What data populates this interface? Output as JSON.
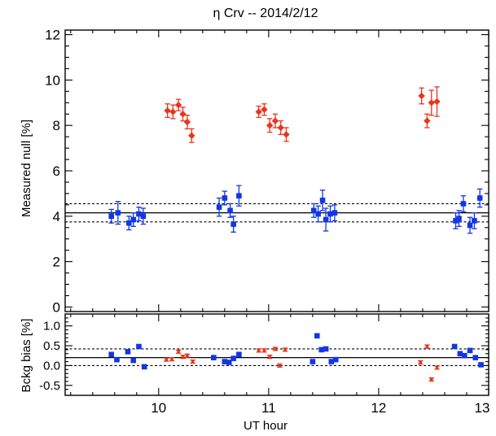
{
  "colors": {
    "red": "#e8351c",
    "blue": "#1236e6",
    "axis": "#000000"
  },
  "chart_data": [
    {
      "type": "scatter",
      "title": "η Crv -- 2014/2/12",
      "xlabel": "",
      "ylabel": "Measured null [%]",
      "xlim": [
        9.15,
        13.0
      ],
      "ylim": [
        -0.2,
        12.2
      ],
      "yticks": [
        0,
        2,
        4,
        6,
        8,
        10,
        12
      ],
      "reference_lines": {
        "solid": 4.15,
        "dashed": [
          3.75,
          4.55
        ]
      },
      "series": [
        {
          "color": "red",
          "marker": "diamond",
          "points": [
            {
              "x": 10.08,
              "y": 8.65,
              "err": 0.3
            },
            {
              "x": 10.13,
              "y": 8.6,
              "err": 0.3
            },
            {
              "x": 10.18,
              "y": 8.9,
              "err": 0.25
            },
            {
              "x": 10.22,
              "y": 8.5,
              "err": 0.3
            },
            {
              "x": 10.26,
              "y": 8.15,
              "err": 0.3
            },
            {
              "x": 10.3,
              "y": 7.55,
              "err": 0.3
            },
            {
              "x": 10.91,
              "y": 8.6,
              "err": 0.25
            },
            {
              "x": 10.96,
              "y": 8.7,
              "err": 0.25
            },
            {
              "x": 11.01,
              "y": 8.0,
              "err": 0.3
            },
            {
              "x": 11.06,
              "y": 8.2,
              "err": 0.3
            },
            {
              "x": 11.11,
              "y": 7.9,
              "err": 0.3
            },
            {
              "x": 11.16,
              "y": 7.6,
              "err": 0.3
            },
            {
              "x": 12.39,
              "y": 9.3,
              "err": 0.35
            },
            {
              "x": 12.44,
              "y": 8.2,
              "err": 0.3
            },
            {
              "x": 12.48,
              "y": 9.0,
              "err": 0.55
            },
            {
              "x": 12.53,
              "y": 9.05,
              "err": 0.65
            }
          ]
        },
        {
          "color": "blue",
          "marker": "square",
          "points": [
            {
              "x": 9.57,
              "y": 4.0,
              "err": 0.3
            },
            {
              "x": 9.63,
              "y": 4.15,
              "err": 0.5
            },
            {
              "x": 9.73,
              "y": 3.7,
              "err": 0.3
            },
            {
              "x": 9.77,
              "y": 3.85,
              "err": 0.3
            },
            {
              "x": 9.82,
              "y": 4.1,
              "err": 0.3
            },
            {
              "x": 9.86,
              "y": 4.0,
              "err": 0.35
            },
            {
              "x": 10.55,
              "y": 4.4,
              "err": 0.4
            },
            {
              "x": 10.6,
              "y": 4.8,
              "err": 0.3
            },
            {
              "x": 10.65,
              "y": 4.25,
              "err": 0.3
            },
            {
              "x": 10.68,
              "y": 3.65,
              "err": 0.35
            },
            {
              "x": 10.73,
              "y": 4.9,
              "err": 0.45
            },
            {
              "x": 11.41,
              "y": 4.25,
              "err": 0.3
            },
            {
              "x": 11.45,
              "y": 4.1,
              "err": 0.35
            },
            {
              "x": 11.49,
              "y": 4.7,
              "err": 0.45
            },
            {
              "x": 11.52,
              "y": 3.85,
              "err": 0.5
            },
            {
              "x": 11.56,
              "y": 4.1,
              "err": 0.35
            },
            {
              "x": 11.6,
              "y": 4.15,
              "err": 0.35
            },
            {
              "x": 12.7,
              "y": 3.8,
              "err": 0.35
            },
            {
              "x": 12.73,
              "y": 3.9,
              "err": 0.35
            },
            {
              "x": 12.77,
              "y": 4.55,
              "err": 0.35
            },
            {
              "x": 12.83,
              "y": 3.6,
              "err": 0.35
            },
            {
              "x": 12.87,
              "y": 3.8,
              "err": 0.35
            },
            {
              "x": 12.92,
              "y": 4.8,
              "err": 0.4
            }
          ]
        }
      ]
    },
    {
      "type": "scatter",
      "title": "",
      "xlabel": "UT hour",
      "ylabel": "Bckg bias [%]",
      "xlim": [
        9.15,
        13.0
      ],
      "ylim": [
        -0.75,
        1.3
      ],
      "xticks": [
        10,
        11,
        12,
        13
      ],
      "yticks": [
        -0.5,
        0.0,
        0.5,
        1.0
      ],
      "ytick_labels": [
        "-0.5",
        "0.0",
        "0.5",
        "1.0"
      ],
      "reference_lines": {
        "solid": 0.2,
        "dashed": [
          0.0,
          0.42
        ]
      },
      "series": [
        {
          "color": "red",
          "marker": "bar",
          "points": [
            {
              "x": 10.07,
              "y": 0.15,
              "err": 0.04
            },
            {
              "x": 10.12,
              "y": 0.16,
              "err": 0.04
            },
            {
              "x": 10.18,
              "y": 0.35,
              "err": 0.04
            },
            {
              "x": 10.22,
              "y": 0.22,
              "err": 0.04
            },
            {
              "x": 10.26,
              "y": 0.25,
              "err": 0.04
            },
            {
              "x": 10.31,
              "y": 0.1,
              "err": 0.04
            },
            {
              "x": 10.91,
              "y": 0.38,
              "err": 0.04
            },
            {
              "x": 10.96,
              "y": 0.38,
              "err": 0.04
            },
            {
              "x": 11.01,
              "y": 0.22,
              "err": 0.04
            },
            {
              "x": 11.06,
              "y": 0.42,
              "err": 0.04
            },
            {
              "x": 11.1,
              "y": 0.0,
              "err": 0.04
            },
            {
              "x": 11.15,
              "y": 0.4,
              "err": 0.04
            },
            {
              "x": 12.38,
              "y": 0.08,
              "err": 0.04
            },
            {
              "x": 12.44,
              "y": 0.48,
              "err": 0.04
            },
            {
              "x": 12.48,
              "y": -0.35,
              "err": 0.04
            },
            {
              "x": 12.53,
              "y": -0.05,
              "err": 0.04
            }
          ]
        },
        {
          "color": "blue",
          "marker": "square",
          "points": [
            {
              "x": 9.57,
              "y": 0.28,
              "err": 0.04
            },
            {
              "x": 9.62,
              "y": 0.15,
              "err": 0.04
            },
            {
              "x": 9.72,
              "y": 0.35,
              "err": 0.04
            },
            {
              "x": 9.77,
              "y": 0.13,
              "err": 0.04
            },
            {
              "x": 9.82,
              "y": 0.48,
              "err": 0.04
            },
            {
              "x": 9.87,
              "y": -0.03,
              "err": 0.04
            },
            {
              "x": 10.5,
              "y": 0.2,
              "err": 0.03
            },
            {
              "x": 10.6,
              "y": 0.1,
              "err": 0.04
            },
            {
              "x": 10.64,
              "y": 0.08,
              "err": 0.04
            },
            {
              "x": 10.68,
              "y": 0.18,
              "err": 0.04
            },
            {
              "x": 10.73,
              "y": 0.28,
              "err": 0.04
            },
            {
              "x": 11.4,
              "y": 0.1,
              "err": 0.04
            },
            {
              "x": 11.44,
              "y": 0.75,
              "err": 0.04
            },
            {
              "x": 11.48,
              "y": 0.4,
              "err": 0.04
            },
            {
              "x": 11.52,
              "y": 0.42,
              "err": 0.04
            },
            {
              "x": 11.57,
              "y": 0.1,
              "err": 0.04
            },
            {
              "x": 11.61,
              "y": 0.15,
              "err": 0.04
            },
            {
              "x": 12.69,
              "y": 0.48,
              "err": 0.04
            },
            {
              "x": 12.74,
              "y": 0.3,
              "err": 0.04
            },
            {
              "x": 12.78,
              "y": 0.25,
              "err": 0.04
            },
            {
              "x": 12.83,
              "y": 0.38,
              "err": 0.04
            },
            {
              "x": 12.88,
              "y": 0.2,
              "err": 0.04
            },
            {
              "x": 12.93,
              "y": 0.02,
              "err": 0.04
            }
          ]
        }
      ]
    }
  ]
}
